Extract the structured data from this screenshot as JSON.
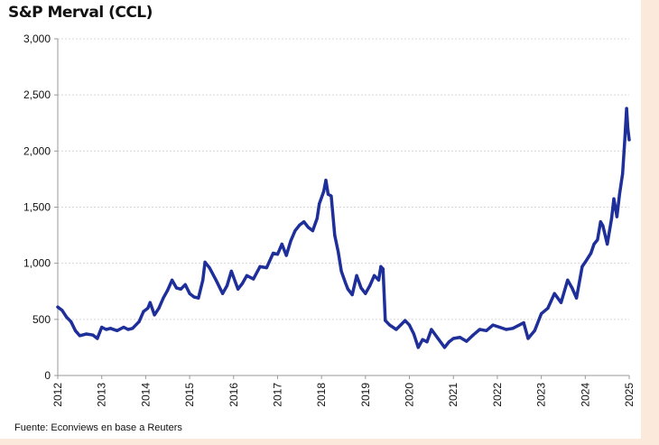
{
  "chart_data": {
    "type": "line",
    "title": "S&P Merval (CCL)",
    "source": "Fuente: Econviews en base a Reuters",
    "xlabel": "",
    "ylabel": "",
    "xlim": [
      2012,
      2025
    ],
    "ylim": [
      0,
      3000
    ],
    "x_ticks": [
      "2012",
      "2013",
      "2014",
      "2015",
      "2016",
      "2017",
      "2018",
      "2019",
      "2020",
      "2021",
      "2022",
      "2023",
      "2024",
      "2025"
    ],
    "y_ticks": [
      "0",
      "500",
      "1,000",
      "1,500",
      "2,000",
      "2,500",
      "3,000"
    ],
    "grid": true,
    "legend": "none",
    "line_color": "#1f2f9a",
    "series": [
      {
        "x": [
          2012.0,
          2012.1,
          2012.2,
          2012.3,
          2012.4,
          2012.5,
          2012.65,
          2012.8,
          2012.9,
          2013.0,
          2013.1,
          2013.2,
          2013.35,
          2013.5,
          2013.6,
          2013.7,
          2013.85,
          2013.95,
          2014.05,
          2014.1,
          2014.2,
          2014.3,
          2014.4,
          2014.5,
          2014.6,
          2014.7,
          2014.8,
          2014.9,
          2015.0,
          2015.1,
          2015.2,
          2015.3,
          2015.35,
          2015.45,
          2015.6,
          2015.75,
          2015.85,
          2015.95,
          2016.1,
          2016.2,
          2016.3,
          2016.45,
          2016.6,
          2016.75,
          2016.9,
          2017.0,
          2017.1,
          2017.2,
          2017.3,
          2017.4,
          2017.5,
          2017.6,
          2017.7,
          2017.8,
          2017.9,
          2017.95,
          2018.05,
          2018.1,
          2018.15,
          2018.22,
          2018.3,
          2018.38,
          2018.45,
          2018.55,
          2018.6,
          2018.7,
          2018.8,
          2018.9,
          2019.0,
          2019.1,
          2019.2,
          2019.3,
          2019.35,
          2019.4,
          2019.45,
          2019.55,
          2019.7,
          2019.8,
          2019.9,
          2020.0,
          2020.1,
          2020.2,
          2020.3,
          2020.4,
          2020.5,
          2020.65,
          2020.8,
          2020.9,
          2021.0,
          2021.15,
          2021.3,
          2021.45,
          2021.6,
          2021.75,
          2021.9,
          2022.05,
          2022.2,
          2022.35,
          2022.5,
          2022.6,
          2022.7,
          2022.85,
          2023.0,
          2023.15,
          2023.3,
          2023.45,
          2023.6,
          2023.7,
          2023.8,
          2023.93,
          2024.0,
          2024.13,
          2024.2,
          2024.28,
          2024.35,
          2024.4,
          2024.5,
          2024.6,
          2024.65,
          2024.72,
          2024.78,
          2024.85,
          2024.9,
          2024.94,
          2024.97,
          2025.0
        ],
        "values": [
          610,
          580,
          520,
          480,
          400,
          355,
          370,
          360,
          330,
          430,
          410,
          420,
          400,
          430,
          410,
          420,
          480,
          570,
          600,
          650,
          540,
          600,
          690,
          760,
          850,
          780,
          770,
          810,
          730,
          700,
          690,
          850,
          1010,
          960,
          850,
          730,
          800,
          930,
          770,
          820,
          890,
          860,
          970,
          960,
          1090,
          1080,
          1170,
          1070,
          1200,
          1290,
          1340,
          1370,
          1320,
          1290,
          1400,
          1530,
          1640,
          1740,
          1615,
          1600,
          1250,
          1100,
          930,
          820,
          770,
          720,
          890,
          780,
          730,
          800,
          890,
          850,
          970,
          950,
          490,
          450,
          410,
          450,
          490,
          450,
          370,
          250,
          320,
          300,
          410,
          330,
          250,
          300,
          330,
          340,
          305,
          360,
          410,
          400,
          450,
          430,
          410,
          420,
          450,
          470,
          330,
          400,
          550,
          600,
          730,
          650,
          850,
          780,
          690,
          970,
          1010,
          1090,
          1170,
          1210,
          1370,
          1335,
          1170,
          1400,
          1575,
          1415,
          1615,
          1800,
          2100,
          2380,
          2200,
          2100
        ]
      }
    ]
  }
}
